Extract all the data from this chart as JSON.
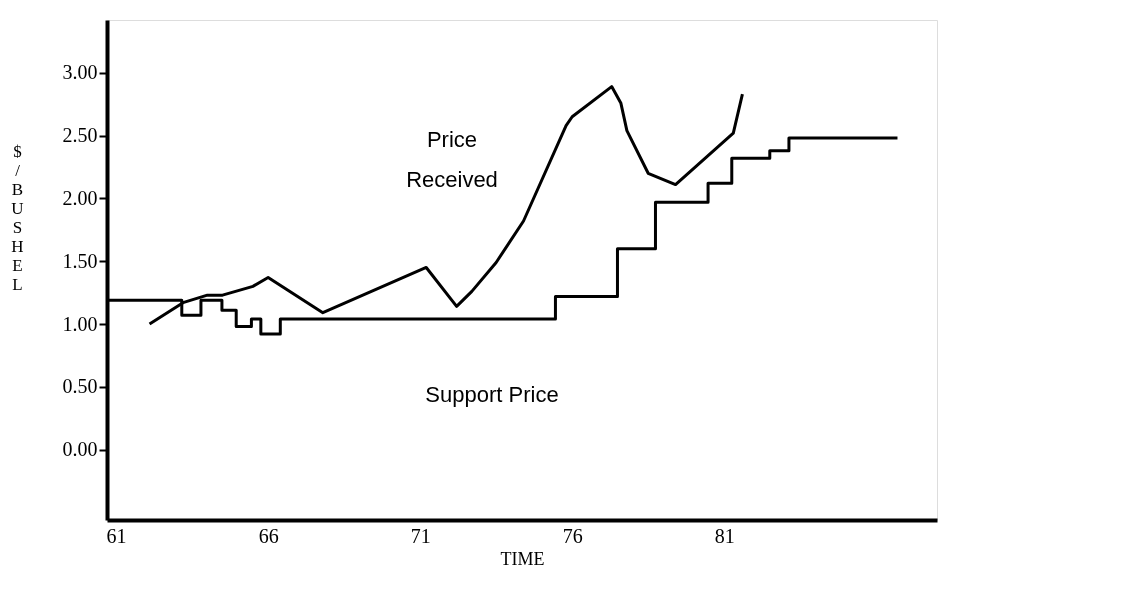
{
  "chart_data": {
    "type": "line",
    "xlabel": "TIME",
    "ylabel": "$/BUSHEL",
    "xlim": [
      60.7,
      88
    ],
    "xticks": [
      61,
      66,
      71,
      76,
      81
    ],
    "ylim": [
      -0.56,
      3.42
    ],
    "yticks": [
      {
        "value": 0,
        "label": "0.00"
      },
      {
        "value": 0.5,
        "label": "0.50"
      },
      {
        "value": 1,
        "label": "1.00"
      },
      {
        "value": 1.5,
        "label": "1.50"
      },
      {
        "value": 2,
        "label": "2.00"
      },
      {
        "value": 2.5,
        "label": "2.50"
      },
      {
        "value": 3,
        "label": "3.00"
      }
    ],
    "grid": false,
    "marker": "none",
    "line_style": "solid",
    "series": [
      {
        "name": "Price\nReceived",
        "color": "#000000",
        "x": [
          62.1,
          63.2,
          64.0,
          64.5,
          65.5,
          66.0,
          67.8,
          71.2,
          72.2,
          72.7,
          73.5,
          74.4,
          75.8,
          76.0,
          77.3,
          77.6,
          77.8,
          78.5,
          79.4,
          81.3,
          81.6
        ],
        "values": [
          1.0,
          1.17,
          1.23,
          1.23,
          1.3,
          1.37,
          1.09,
          1.45,
          1.14,
          1.26,
          1.49,
          1.82,
          2.58,
          2.65,
          2.89,
          2.76,
          2.54,
          2.2,
          2.11,
          2.52,
          2.83
        ]
      },
      {
        "name": "Support Price",
        "type": "step",
        "color": "#000000",
        "x": [
          60.7,
          63.16,
          63.79,
          64.48,
          64.95,
          65.45,
          65.76,
          66.4,
          75.45,
          77.49,
          78.74,
          80.47,
          81.25,
          82.5,
          83.13,
          86.7
        ],
        "values": [
          1.19,
          1.07,
          1.19,
          1.11,
          0.98,
          1.04,
          0.92,
          1.04,
          1.22,
          1.6,
          1.97,
          2.12,
          2.32,
          2.38,
          2.48,
          2.48
        ]
      }
    ]
  }
}
